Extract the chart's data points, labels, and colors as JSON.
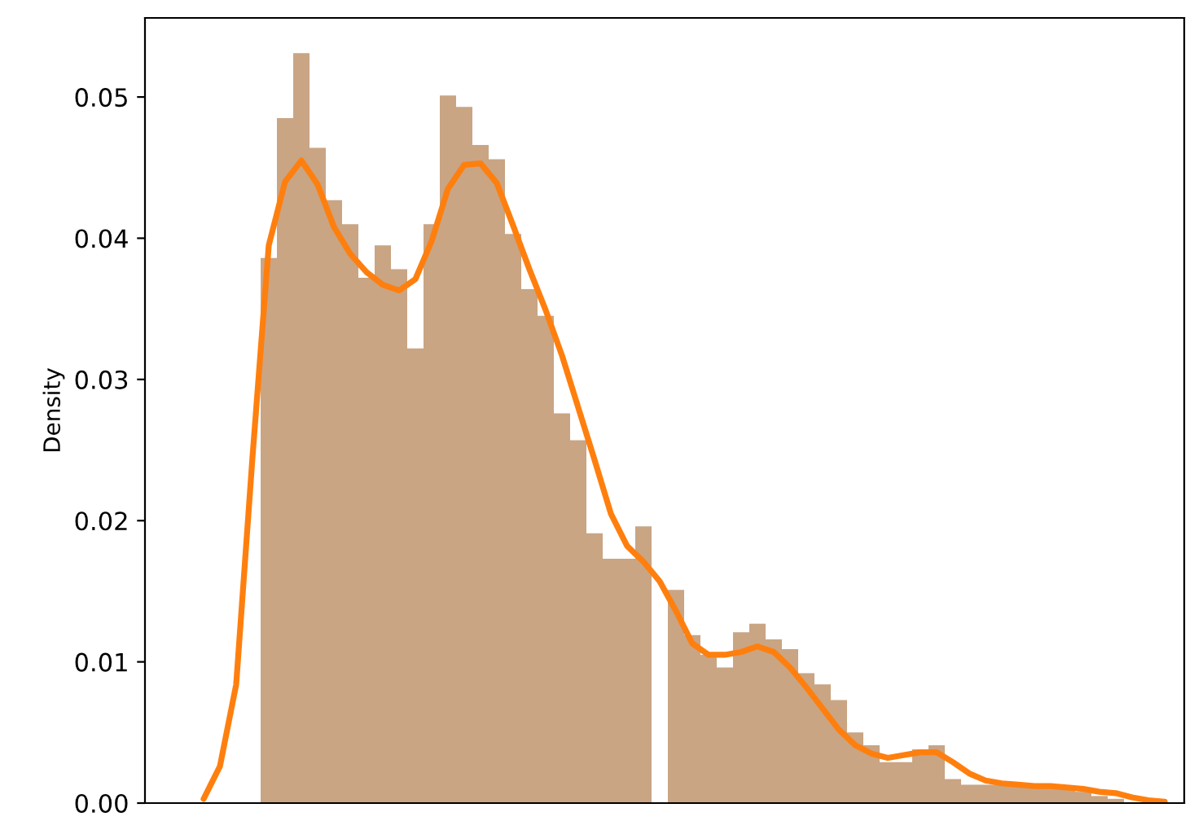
{
  "chart_data": {
    "type": "bar",
    "ylabel": "Density",
    "categories": [
      null,
      null,
      null,
      null,
      null,
      null,
      null,
      null,
      null,
      null,
      null,
      null,
      null,
      null,
      null,
      null,
      null,
      null,
      null,
      null,
      null,
      null,
      null,
      null,
      null,
      null,
      null,
      null,
      null,
      null,
      null,
      null,
      null,
      null,
      null,
      null,
      null,
      null,
      null,
      null,
      null,
      null,
      null,
      null,
      null,
      null,
      null,
      null,
      null,
      null,
      null,
      null,
      null,
      null,
      null,
      null,
      null,
      null,
      null,
      null
    ],
    "series": [
      {
        "color": "#c9a584",
        "values": [
          0,
          0,
          0,
          0,
          0.0386,
          0.0485,
          0.0531,
          0.0464,
          0.0427,
          0.041,
          0.0372,
          0.0395,
          0.0378,
          0.0322,
          0.041,
          0.0501,
          0.0493,
          0.0466,
          0.0456,
          0.0403,
          0.0364,
          0.0345,
          0.0276,
          0.0257,
          0.0191,
          0.0173,
          0.0173,
          0.0196,
          0,
          0.0151,
          0.0119,
          0.0105,
          0.0096,
          0.0121,
          0.0127,
          0.0116,
          0.0109,
          0.0092,
          0.0084,
          0.0073,
          0.005,
          0.0041,
          0.0029,
          0.0029,
          0.0038,
          0.0041,
          0.0017,
          0.0013,
          0.0013,
          0.0013,
          0.0013,
          0.0013,
          0.0012,
          0.001,
          0.0008,
          0.0005,
          0.0003,
          null,
          null,
          0
        ]
      },
      {
        "type": "line",
        "color": "#ff7f0e",
        "values": [
          0.0003,
          0.0026,
          0.0084,
          0.0245,
          0.0395,
          0.044,
          0.0455,
          0.0438,
          0.0408,
          0.0389,
          0.0376,
          0.0367,
          0.0363,
          0.0371,
          0.0398,
          0.0435,
          0.0452,
          0.0453,
          0.0439,
          0.0409,
          0.0378,
          0.0349,
          0.0317,
          0.028,
          0.0243,
          0.0205,
          0.0182,
          0.0171,
          0.0157,
          0.0136,
          0.0113,
          0.0105,
          0.0105,
          0.0107,
          0.0111,
          0.0107,
          0.0096,
          0.0082,
          0.0067,
          0.0052,
          0.0041,
          0.0035,
          0.0032,
          0.0034,
          0.0036,
          0.0036,
          0.0029,
          0.0021,
          0.0016,
          0.0014,
          0.0013,
          0.0012,
          0.0012,
          0.0011,
          0.001,
          0.0008,
          0.0007,
          0.0004,
          0.0002,
          0.0001
        ]
      }
    ],
    "ylim": [
      0,
      0.0556
    ],
    "yticks": [
      {
        "value": 0,
        "label": "0.00"
      },
      {
        "value": 0.01,
        "label": "0.01"
      },
      {
        "value": 0.02,
        "label": "0.02"
      },
      {
        "value": 0.03,
        "label": "0.03"
      },
      {
        "value": 0.04,
        "label": "0.04"
      },
      {
        "value": 0.05,
        "label": "0.05"
      }
    ],
    "tick_labels": "y"
  }
}
